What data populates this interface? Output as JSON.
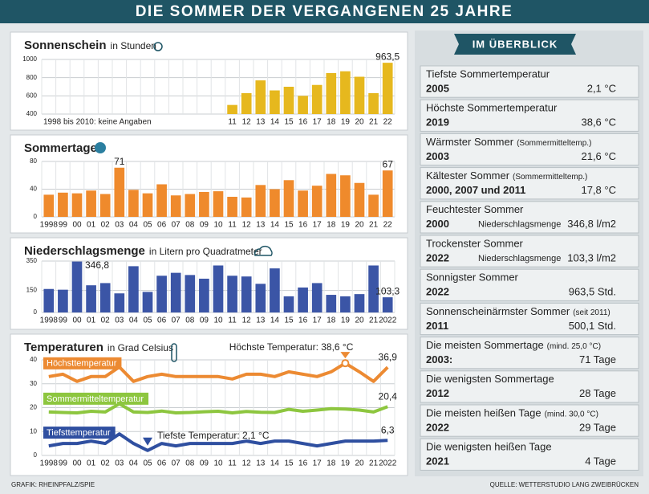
{
  "header": {
    "title": "DIE SOMMER DER VERGANGENEN 25 JAHRE"
  },
  "chart_data": [
    {
      "type": "bar",
      "title": "Sonnenschein",
      "subtitle": "in Stunden",
      "annotation": "1998 bis 2010: keine Angaben",
      "categories": [
        null,
        null,
        null,
        null,
        null,
        null,
        null,
        null,
        null,
        null,
        null,
        null,
        null,
        "11",
        "12",
        "13",
        "14",
        "15",
        "16",
        "17",
        "18",
        "19",
        "20",
        "21",
        "22"
      ],
      "values": [
        null,
        null,
        null,
        null,
        null,
        null,
        null,
        null,
        null,
        null,
        null,
        null,
        null,
        500.1,
        630,
        770,
        660,
        700,
        600,
        720,
        850,
        870,
        810,
        630,
        963.5
      ],
      "value_labels": [
        null,
        null,
        null,
        null,
        null,
        null,
        null,
        null,
        null,
        null,
        null,
        null,
        null,
        null,
        null,
        null,
        null,
        null,
        null,
        null,
        null,
        null,
        null,
        null,
        "963,5"
      ],
      "color": "#e6b81e",
      "ylim": [
        400,
        1000
      ],
      "yticks": [
        400,
        600,
        800,
        1000
      ],
      "grid": true
    },
    {
      "type": "bar",
      "title": "Sommertage",
      "categories": [
        "1998",
        "99",
        "00",
        "01",
        "02",
        "03",
        "04",
        "05",
        "06",
        "07",
        "08",
        "09",
        "10",
        "11",
        "12",
        "13",
        "14",
        "15",
        "16",
        "17",
        "18",
        "19",
        "20",
        "21",
        "22"
      ],
      "values": [
        32,
        35,
        34,
        38,
        33,
        71,
        39,
        34,
        47,
        31,
        33,
        36,
        37,
        29,
        28,
        46,
        40,
        53,
        38,
        45,
        62,
        60,
        49,
        32,
        67
      ],
      "value_labels": [
        null,
        null,
        null,
        null,
        null,
        "71",
        null,
        null,
        null,
        null,
        null,
        null,
        null,
        null,
        null,
        null,
        null,
        null,
        null,
        null,
        null,
        null,
        null,
        null,
        "67"
      ],
      "color": "#ef8a2c",
      "ylim": [
        0,
        80
      ],
      "yticks": [
        0,
        40,
        80
      ],
      "grid": true
    },
    {
      "type": "bar",
      "title": "Niederschlagsmenge",
      "subtitle": "in Litern pro Quadratmeter",
      "categories": [
        "1998",
        "99",
        "00",
        "01",
        "02",
        "03",
        "04",
        "05",
        "06",
        "07",
        "08",
        "09",
        "10",
        "11",
        "12",
        "13",
        "14",
        "15",
        "16",
        "17",
        "18",
        "19",
        "20",
        "21",
        "2022"
      ],
      "values": [
        160,
        155,
        346.8,
        185,
        200,
        130,
        315,
        140,
        250,
        270,
        255,
        230,
        320,
        250,
        245,
        195,
        300,
        110,
        170,
        200,
        120,
        110,
        125,
        320,
        103.3
      ],
      "value_labels": [
        null,
        null,
        "346,8",
        null,
        null,
        null,
        null,
        null,
        null,
        null,
        null,
        null,
        null,
        null,
        null,
        null,
        null,
        null,
        null,
        null,
        null,
        null,
        null,
        null,
        "103,3"
      ],
      "color": "#3b55a6",
      "ylim": [
        0,
        350
      ],
      "yticks": [
        0,
        150,
        350
      ],
      "grid": true
    },
    {
      "type": "line",
      "title": "Temperaturen",
      "subtitle": "in Grad Celsius",
      "annotations": [
        "Höchste Temperatur: 38,6 °C",
        "Tiefste Temperatur: 2,1 °C"
      ],
      "categories": [
        "1998",
        "99",
        "00",
        "01",
        "02",
        "03",
        "04",
        "05",
        "06",
        "07",
        "08",
        "09",
        "10",
        "11",
        "12",
        "13",
        "14",
        "15",
        "16",
        "17",
        "18",
        "19",
        "20",
        "21",
        "2022"
      ],
      "series": [
        {
          "name": "Höchsttemperatur",
          "color": "#ec8a32",
          "values": [
            33,
            34,
            31,
            33,
            33,
            37,
            31,
            33,
            34,
            33,
            33,
            33,
            33,
            32,
            34,
            34,
            33,
            35,
            34,
            33,
            35,
            38.6,
            35,
            31,
            36.9
          ],
          "value_labels": [
            null,
            null,
            null,
            null,
            null,
            null,
            null,
            null,
            null,
            null,
            null,
            null,
            null,
            null,
            null,
            null,
            null,
            null,
            null,
            null,
            null,
            null,
            null,
            null,
            "36,9"
          ]
        },
        {
          "name": "Sommermitteltemperatur",
          "color": "#8dc63f",
          "values": [
            18.2,
            18.0,
            17.8,
            18.5,
            18.2,
            21.6,
            18.2,
            18.0,
            18.6,
            17.8,
            18.0,
            18.3,
            18.5,
            17.8,
            18.4,
            18.1,
            18.0,
            19.3,
            18.5,
            19.0,
            19.6,
            19.4,
            19.0,
            18.2,
            20.4
          ],
          "value_labels": [
            null,
            null,
            null,
            null,
            null,
            null,
            null,
            null,
            null,
            null,
            null,
            null,
            null,
            null,
            null,
            null,
            null,
            null,
            null,
            null,
            null,
            null,
            null,
            null,
            "20,4"
          ]
        },
        {
          "name": "Tiefsttemperatur",
          "color": "#2f4fa0",
          "values": [
            4,
            5,
            5,
            6,
            5,
            9,
            5,
            2.1,
            5,
            4,
            5,
            5,
            5,
            5,
            6,
            5,
            6,
            6,
            5,
            4,
            5,
            6,
            6,
            6,
            6.3
          ],
          "value_labels": [
            null,
            null,
            null,
            null,
            null,
            null,
            null,
            null,
            null,
            null,
            null,
            null,
            null,
            null,
            null,
            null,
            null,
            null,
            null,
            null,
            null,
            null,
            null,
            null,
            "6,3"
          ]
        }
      ],
      "ylim": [
        0,
        40
      ],
      "yticks": [
        0,
        10,
        20,
        30,
        40
      ],
      "grid": true
    }
  ],
  "overview": {
    "title": "IM ÜBERBLICK",
    "items": [
      {
        "title": "Tiefste Sommertemperatur",
        "year": "2005",
        "value": "2,1 °C"
      },
      {
        "title": "Höchste Sommertemperatur",
        "year": "2019",
        "value": "38,6 °C"
      },
      {
        "title": "Wärmster Sommer",
        "note": "(Sommermitteltemp.)",
        "year": "2003",
        "value": "21,6 °C"
      },
      {
        "title": "Kältester Sommer",
        "note": "(Sommermitteltemp.)",
        "year": "2000, 2007 und 2011",
        "value": "17,8 °C"
      },
      {
        "title": "Feuchtester Sommer",
        "year": "2000",
        "detail": "Niederschlagsmenge",
        "value": "346,8 l/m2"
      },
      {
        "title": "Trockenster Sommer",
        "year": "2022",
        "detail": "Niederschlagsmenge",
        "value": "103,3 l/m2"
      },
      {
        "title": "Sonnigster Sommer",
        "year": "2022",
        "value": "963,5 Std."
      },
      {
        "title": "Sonnenscheinärmster Sommer",
        "note": "(seit 2011)",
        "year": "2011",
        "value": "500,1 Std."
      },
      {
        "title": "Die meisten Sommertage",
        "note": "(mind. 25,0 °C)",
        "year": "2003:",
        "value": "71 Tage"
      },
      {
        "title": "Die wenigsten Sommertage",
        "year": "2012",
        "value": "28 Tage"
      },
      {
        "title": "Die meisten heißen Tage",
        "note": "(mind. 30,0 °C)",
        "year": "2022",
        "value": "29 Tage"
      },
      {
        "title": "Die wenigsten heißen Tage",
        "year": "2021",
        "value": "4 Tage"
      }
    ]
  },
  "footer": {
    "credit": "GRAFIK: RHEINPFALZ/SPIE",
    "source": "QUELLE: WETTERSTUDIO LANG ZWEIBRÜCKEN"
  }
}
